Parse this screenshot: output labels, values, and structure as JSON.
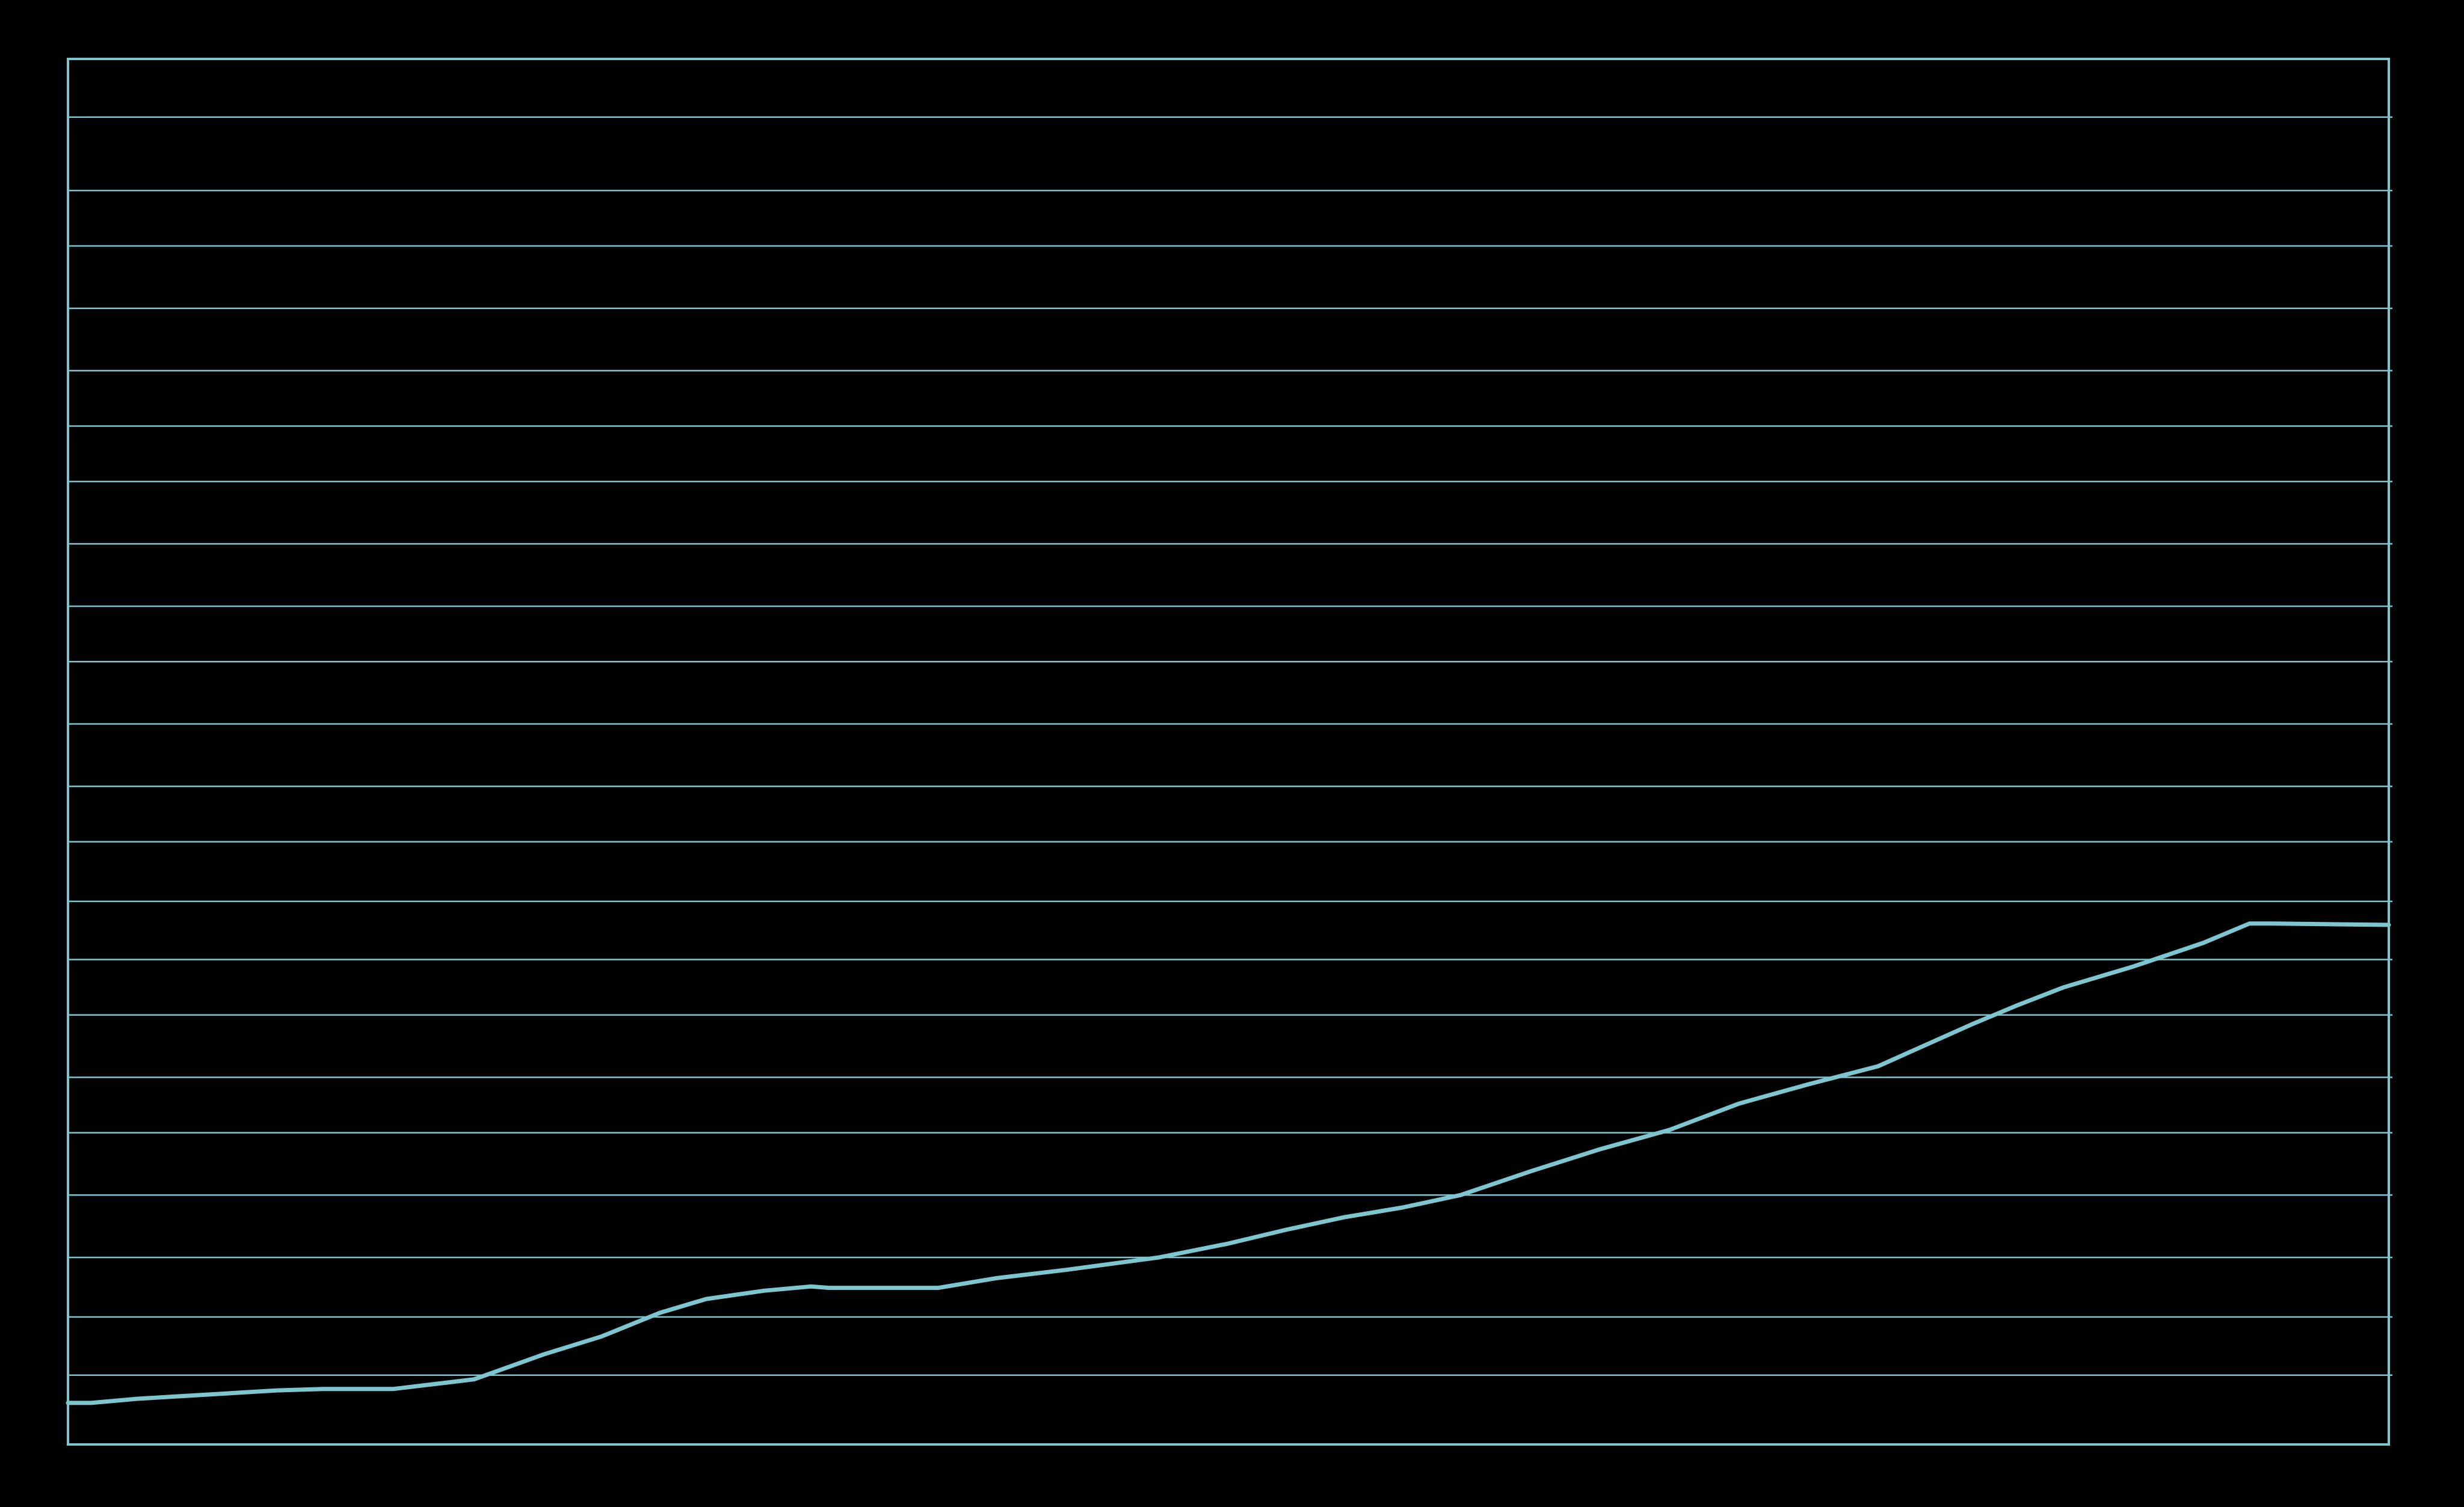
{
  "chart_data": {
    "type": "line",
    "title": "",
    "xlabel": "",
    "ylabel": "",
    "xlim": [
      0,
      1000
    ],
    "ylim": [
      0,
      100
    ],
    "grid": true,
    "gridline_values": [
      5,
      9.2,
      13.5,
      18,
      22.5,
      26.5,
      31,
      35,
      39.2,
      43.5,
      47.5,
      52,
      56.5,
      60.5,
      65,
      69.5,
      73.5,
      77.5,
      82,
      86.5,
      90.5,
      95.8
    ],
    "series": [
      {
        "values": [
          [
            0,
            3.0
          ],
          [
            10,
            3.0
          ],
          [
            30,
            3.3
          ],
          [
            50,
            3.5
          ],
          [
            70,
            3.7
          ],
          [
            90,
            3.9
          ],
          [
            110,
            4.0
          ],
          [
            130,
            4.0
          ],
          [
            140,
            4.0
          ],
          [
            175,
            4.7
          ],
          [
            205,
            6.5
          ],
          [
            230,
            7.8
          ],
          [
            255,
            9.5
          ],
          [
            275,
            10.5
          ],
          [
            300,
            11.1
          ],
          [
            320,
            11.4
          ],
          [
            328,
            11.3
          ],
          [
            375,
            11.3
          ],
          [
            400,
            12.0
          ],
          [
            430,
            12.6
          ],
          [
            470,
            13.5
          ],
          [
            500,
            14.5
          ],
          [
            525,
            15.5
          ],
          [
            550,
            16.4
          ],
          [
            575,
            17.1
          ],
          [
            600,
            18.0
          ],
          [
            630,
            19.7
          ],
          [
            660,
            21.3
          ],
          [
            690,
            22.7
          ],
          [
            720,
            24.6
          ],
          [
            750,
            26.0
          ],
          [
            780,
            27.3
          ],
          [
            800,
            28.8
          ],
          [
            820,
            30.3
          ],
          [
            840,
            31.7
          ],
          [
            860,
            33.0
          ],
          [
            890,
            34.5
          ],
          [
            920,
            36.2
          ],
          [
            940,
            37.6
          ],
          [
            950,
            37.6
          ],
          [
            1000,
            37.5
          ]
        ]
      }
    ],
    "line_color": "#7ec6cf",
    "grid_color": "#7ec6cf",
    "background_color": "#000000"
  }
}
